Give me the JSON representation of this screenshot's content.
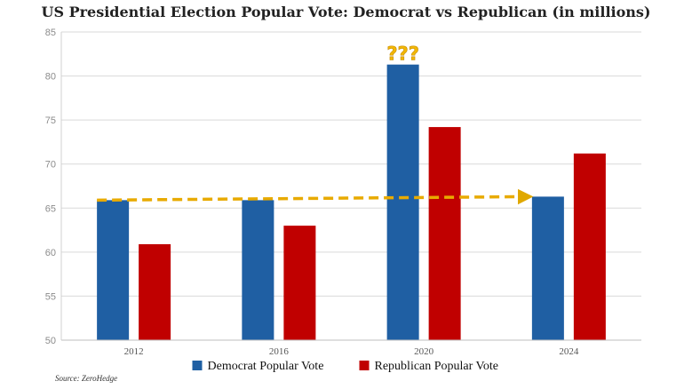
{
  "chart_data": {
    "type": "bar",
    "title": "US Presidential Election Popular Vote: Democrat vs Republican (in millions)",
    "categories": [
      "2012",
      "2016",
      "2020",
      "2024"
    ],
    "series": [
      {
        "name": "Democrat Popular Vote",
        "color": "#1f5fa3",
        "values": [
          65.9,
          65.9,
          81.3,
          66.3
        ]
      },
      {
        "name": "Republican Popular Vote",
        "color": "#c00000",
        "values": [
          60.9,
          63.0,
          74.2,
          71.2
        ]
      }
    ],
    "ylim": [
      50,
      85
    ],
    "yticks": [
      50,
      55,
      60,
      65,
      70,
      75,
      80,
      85
    ],
    "grid": true,
    "legend": "bottom",
    "annotations": [
      {
        "type": "text",
        "text": "???",
        "category": "2020",
        "color": "#f2b705"
      },
      {
        "type": "dashed-arrow",
        "from_category": "2012",
        "to_category": "2024",
        "from_value": 65.9,
        "to_value": 66.3,
        "color": "#f2b705"
      }
    ],
    "source": "Source: ZeroHedge"
  }
}
